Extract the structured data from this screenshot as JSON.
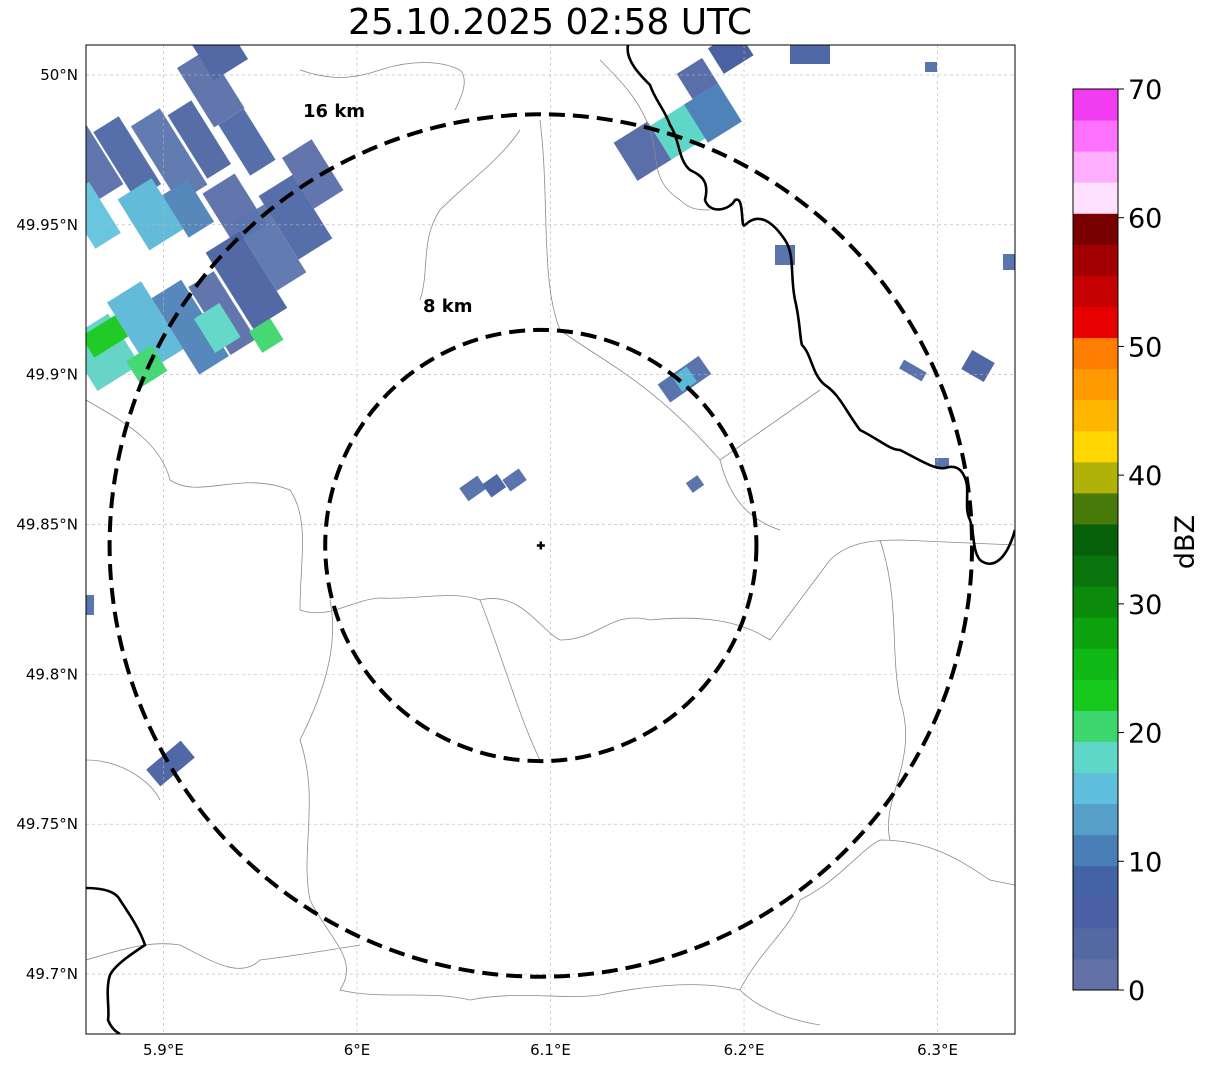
{
  "title": "25.10.2025 02:58 UTC",
  "map": {
    "lon_range": [
      5.86,
      6.34
    ],
    "lat_range": [
      49.68,
      50.01
    ],
    "radar_site": {
      "lon": 6.095,
      "lat": 49.843
    },
    "lat_ticks": [
      {
        "value": 50.0,
        "label": "50°N"
      },
      {
        "value": 49.95,
        "label": "49.95°N"
      },
      {
        "value": 49.9,
        "label": "49.9°N"
      },
      {
        "value": 49.85,
        "label": "49.85°N"
      },
      {
        "value": 49.8,
        "label": "49.8°N"
      },
      {
        "value": 49.75,
        "label": "49.75°N"
      },
      {
        "value": 49.7,
        "label": "49.7°N"
      }
    ],
    "lon_ticks": [
      {
        "value": 5.9,
        "label": "5.9°E"
      },
      {
        "value": 6.0,
        "label": "6°E"
      },
      {
        "value": 6.1,
        "label": "6.1°E"
      },
      {
        "value": 6.2,
        "label": "6.2°E"
      },
      {
        "value": 6.3,
        "label": "6.3°E"
      }
    ],
    "range_rings": [
      {
        "km": 8,
        "label": "8 km"
      },
      {
        "km": 16,
        "label": "16 km"
      }
    ],
    "gridlines": true,
    "echo_color": "#5470a8"
  },
  "colorbar": {
    "label": "dBZ",
    "min": 0,
    "max": 70,
    "tick_labels": [
      "0",
      "10",
      "20",
      "30",
      "40",
      "50",
      "60",
      "70"
    ],
    "colors": [
      "#6272a6",
      "#5468a2",
      "#4b5fa4",
      "#4463a6",
      "#4a7eb6",
      "#569fc9",
      "#60bfdd",
      "#5ed6c8",
      "#3dd66e",
      "#16c91c",
      "#0fb815",
      "#0da30f",
      "#0b8a0c",
      "#0a740c",
      "#056009",
      "#487a0a",
      "#b0b20a",
      "#ffd600",
      "#ffb600",
      "#ff9a00",
      "#ff7d00",
      "#e80000",
      "#c40000",
      "#a20000",
      "#7a0000",
      "#ffe0ff",
      "#ffaeff",
      "#ff72ff",
      "#f23cf2"
    ]
  }
}
